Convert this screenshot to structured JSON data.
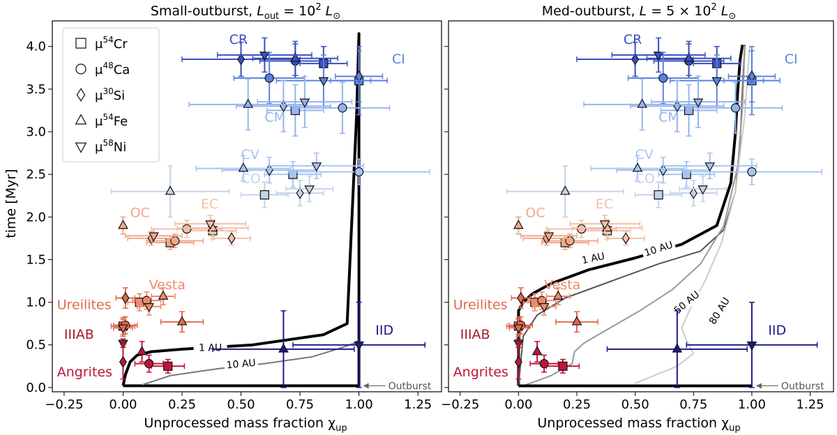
{
  "figure": {
    "ylabel": "time [Myr]",
    "outburst_note": "Outburst"
  },
  "legend": {
    "entries": [
      {
        "marker": "square",
        "label_main": "μ",
        "label_sup": "54",
        "label_tail": "Cr"
      },
      {
        "marker": "circle",
        "label_main": "μ",
        "label_sup": "48",
        "label_tail": "Ca"
      },
      {
        "marker": "diamond",
        "label_main": "μ",
        "label_sup": "30",
        "label_tail": "Si"
      },
      {
        "marker": "triangle-up",
        "label_main": "μ",
        "label_sup": "54",
        "label_tail": "Fe"
      },
      {
        "marker": "triangle-down",
        "label_main": "μ",
        "label_sup": "58",
        "label_tail": "Ni"
      }
    ]
  },
  "colors": {
    "CR": "#3a4fc0",
    "CI": "#5c82e0",
    "CM": "#95b4ec",
    "CV": "#a6c4f2",
    "CO": "#c5d3e8",
    "OC": "#f0a88a",
    "EC": "#f2c0a8",
    "Vesta": "#ee8a6c",
    "Ureilites": "#e0694f",
    "IIIAB": "#a01c24",
    "Angrites": "#c01638",
    "IID": "#1a1a88"
  },
  "panels": [
    {
      "title_main": "Small-outburst, ",
      "title_math": "L",
      "title_sub": "out",
      "title_eq": " = 10",
      "title_sup": "2",
      "title_tail": " L",
      "title_sun": "⊙",
      "xlabel": "Unprocessed mass fraction χ",
      "xlabel_sub": "up",
      "curve_labels": [
        "1 AU",
        "10 AU"
      ]
    },
    {
      "title_main": "Med-outburst, ",
      "title_math": "L",
      "title_sub": "",
      "title_eq": " = 5 × 10",
      "title_sup": "2",
      "title_tail": " L",
      "title_sun": "⊙",
      "xlabel": "Unprocessed mass fraction χ",
      "xlabel_sub": "up",
      "curve_labels": [
        "1 AU",
        "10 AU",
        "50 AU",
        "80 AU"
      ]
    }
  ],
  "chart_data": {
    "type": "scatter",
    "xlim": [
      -0.3,
      1.35
    ],
    "ylim": [
      -0.05,
      4.3
    ],
    "xticks": [
      "−0.25",
      "0.00",
      "0.25",
      "0.50",
      "0.75",
      "1.00",
      "1.25"
    ],
    "xtick_values": [
      -0.25,
      0,
      0.25,
      0.5,
      0.75,
      1.0,
      1.25
    ],
    "yticks": [
      "0.0",
      "0.5",
      "1.0",
      "1.5",
      "2.0",
      "2.5",
      "3.0",
      "3.5",
      "4.0"
    ],
    "ytick_values": [
      0,
      0.5,
      1.0,
      1.5,
      2.0,
      2.5,
      3.0,
      3.5,
      4.0
    ],
    "group_labels": [
      {
        "name": "CR",
        "x": 0.45,
        "y": 4.03
      },
      {
        "name": "CI",
        "x": 1.14,
        "y": 3.8
      },
      {
        "name": "CM",
        "x": 0.6,
        "y": 3.12
      },
      {
        "name": "CV",
        "x": 0.5,
        "y": 2.68
      },
      {
        "name": "CO",
        "x": 0.5,
        "y": 2.4
      },
      {
        "name": "OC",
        "x": 0.03,
        "y": 2.0
      },
      {
        "name": "EC",
        "x": 0.33,
        "y": 2.1
      },
      {
        "name": "Vesta",
        "x": 0.11,
        "y": 1.15
      },
      {
        "name": "Ureilites",
        "x": -0.28,
        "y": 0.92
      },
      {
        "name": "IIIAB",
        "x": -0.25,
        "y": 0.57
      },
      {
        "name": "Angrites",
        "x": -0.28,
        "y": 0.13
      },
      {
        "name": "IID",
        "x": 1.07,
        "y": 0.62
      }
    ],
    "points": [
      {
        "group": "CR",
        "marker": "square",
        "x": 0.85,
        "y": 3.8,
        "xerr": 0.1,
        "yerr": 0.2
      },
      {
        "group": "CR",
        "marker": "circle",
        "x": 0.73,
        "y": 3.83,
        "xerr": 0.15,
        "yerr": 0.2
      },
      {
        "group": "CR",
        "marker": "diamond",
        "x": 0.5,
        "y": 3.85,
        "xerr": 0.25,
        "yerr": 0.2
      },
      {
        "group": "CR",
        "marker": "triangle-up",
        "x": 0.73,
        "y": 3.86,
        "xerr": 0.18,
        "yerr": 0.2
      },
      {
        "group": "CR",
        "marker": "triangle-down",
        "x": 0.6,
        "y": 3.9,
        "xerr": 0.2,
        "yerr": 0.2
      },
      {
        "group": "CI",
        "marker": "square",
        "x": 1.0,
        "y": 3.6,
        "xerr": 0.12,
        "yerr": 0.4
      },
      {
        "group": "CI",
        "marker": "circle",
        "x": 0.62,
        "y": 3.63,
        "xerr": 0.15,
        "yerr": 0.3
      },
      {
        "group": "CI",
        "marker": "diamond",
        "x": 1.0,
        "y": 3.65,
        "xerr": 0.1,
        "yerr": 0.3
      },
      {
        "group": "CI",
        "marker": "triangle-down",
        "x": 0.85,
        "y": 3.6,
        "xerr": 0.2,
        "yerr": 0.3
      },
      {
        "group": "CM",
        "marker": "square",
        "x": 0.73,
        "y": 3.25,
        "xerr": 0.12,
        "yerr": 0.3
      },
      {
        "group": "CM",
        "marker": "circle",
        "x": 0.93,
        "y": 3.28,
        "xerr": 0.2,
        "yerr": 0.3
      },
      {
        "group": "CM",
        "marker": "diamond",
        "x": 0.68,
        "y": 3.3,
        "xerr": 0.2,
        "yerr": 0.3
      },
      {
        "group": "CM",
        "marker": "triangle-up",
        "x": 0.53,
        "y": 3.32,
        "xerr": 0.25,
        "yerr": 0.3
      },
      {
        "group": "CM",
        "marker": "triangle-down",
        "x": 0.77,
        "y": 3.35,
        "xerr": 0.2,
        "yerr": 0.3
      },
      {
        "group": "CV",
        "marker": "square",
        "x": 0.72,
        "y": 2.5,
        "xerr": 0.12,
        "yerr": 0.15
      },
      {
        "group": "CV",
        "marker": "circle",
        "x": 1.0,
        "y": 2.53,
        "xerr": 0.3,
        "yerr": 0.15
      },
      {
        "group": "CV",
        "marker": "diamond",
        "x": 0.62,
        "y": 2.55,
        "xerr": 0.2,
        "yerr": 0.15
      },
      {
        "group": "CV",
        "marker": "triangle-up",
        "x": 0.51,
        "y": 2.57,
        "xerr": 0.2,
        "yerr": 0.15
      },
      {
        "group": "CV",
        "marker": "triangle-down",
        "x": 0.82,
        "y": 2.6,
        "xerr": 0.2,
        "yerr": 0.15
      },
      {
        "group": "CO",
        "marker": "square",
        "x": 0.6,
        "y": 2.26,
        "xerr": 0.1,
        "yerr": 0.15
      },
      {
        "group": "CO",
        "marker": "triangle-up",
        "x": 0.2,
        "y": 2.3,
        "xerr": 0.25,
        "yerr": 0.3
      },
      {
        "group": "CO",
        "marker": "diamond",
        "x": 0.75,
        "y": 2.28,
        "xerr": 0.1,
        "yerr": 0.15
      },
      {
        "group": "CO",
        "marker": "triangle-down",
        "x": 0.79,
        "y": 2.33,
        "xerr": 0.1,
        "yerr": 0.15
      },
      {
        "group": "OC",
        "marker": "square",
        "x": 0.2,
        "y": 1.7,
        "xerr": 0.1,
        "yerr": 0.08
      },
      {
        "group": "OC",
        "marker": "circle",
        "x": 0.22,
        "y": 1.72,
        "xerr": 0.12,
        "yerr": 0.08
      },
      {
        "group": "OC",
        "marker": "diamond",
        "x": 0.12,
        "y": 1.75,
        "xerr": 0.1,
        "yerr": 0.08
      },
      {
        "group": "OC",
        "marker": "triangle-up",
        "x": 0.0,
        "y": 1.9,
        "xerr": 0.0,
        "yerr": 0.1
      },
      {
        "group": "OC",
        "marker": "triangle-down",
        "x": 0.13,
        "y": 1.78,
        "xerr": 0.12,
        "yerr": 0.08
      },
      {
        "group": "EC",
        "marker": "square",
        "x": 0.38,
        "y": 1.84,
        "xerr": 0.1,
        "yerr": 0.1
      },
      {
        "group": "EC",
        "marker": "circle",
        "x": 0.27,
        "y": 1.86,
        "xerr": 0.15,
        "yerr": 0.1
      },
      {
        "group": "EC",
        "marker": "diamond",
        "x": 0.46,
        "y": 1.75,
        "xerr": 0.08,
        "yerr": 0.08
      },
      {
        "group": "EC",
        "marker": "triangle-up",
        "x": 0.38,
        "y": 1.87,
        "xerr": 0.15,
        "yerr": 0.1
      },
      {
        "group": "EC",
        "marker": "triangle-down",
        "x": 0.37,
        "y": 1.92,
        "xerr": 0.15,
        "yerr": 0.1
      },
      {
        "group": "Vesta",
        "marker": "square",
        "x": 0.07,
        "y": 1.0,
        "xerr": 0.05,
        "yerr": 0.1
      },
      {
        "group": "Vesta",
        "marker": "circle",
        "x": 0.1,
        "y": 1.02,
        "xerr": 0.06,
        "yerr": 0.1
      },
      {
        "group": "Vesta",
        "marker": "triangle-up",
        "x": 0.17,
        "y": 1.07,
        "xerr": 0.05,
        "yerr": 0.1
      },
      {
        "group": "Vesta",
        "marker": "triangle-down",
        "x": 0.11,
        "y": 0.95,
        "xerr": 0.05,
        "yerr": 0.1
      },
      {
        "group": "Ureilites",
        "marker": "diamond",
        "x": 0.01,
        "y": 1.05,
        "xerr": 0.04,
        "yerr": 0.12
      },
      {
        "group": "Ureilites",
        "marker": "square",
        "x": 0.0,
        "y": 0.72,
        "xerr": 0.05,
        "yerr": 0.1
      },
      {
        "group": "Ureilites",
        "marker": "circle",
        "x": 0.01,
        "y": 0.73,
        "xerr": 0.05,
        "yerr": 0.1
      },
      {
        "group": "Ureilites",
        "marker": "triangle-up",
        "x": 0.25,
        "y": 0.77,
        "xerr": 0.09,
        "yerr": 0.12
      },
      {
        "group": "Ureilites",
        "marker": "triangle-down",
        "x": 0.0,
        "y": 0.7,
        "xerr": 0.04,
        "yerr": 0.1
      },
      {
        "group": "IIIAB",
        "marker": "triangle-down",
        "x": 0.0,
        "y": 0.52,
        "xerr": 0.0,
        "yerr": 0.05
      },
      {
        "group": "Angrites",
        "marker": "square",
        "x": 0.19,
        "y": 0.25,
        "xerr": 0.07,
        "yerr": 0.08
      },
      {
        "group": "Angrites",
        "marker": "circle",
        "x": 0.11,
        "y": 0.28,
        "xerr": 0.06,
        "yerr": 0.1
      },
      {
        "group": "Angrites",
        "marker": "diamond",
        "x": 0.0,
        "y": 0.3,
        "xerr": 0.0,
        "yerr": 0.2
      },
      {
        "group": "Angrites",
        "marker": "triangle-up",
        "x": 0.08,
        "y": 0.42,
        "xerr": 0.0,
        "yerr": 0.12
      },
      {
        "group": "IID",
        "marker": "triangle-up",
        "x": 0.68,
        "y": 0.45,
        "xerr": 0.3,
        "yerr": 0.45
      },
      {
        "group": "IID",
        "marker": "triangle-down",
        "x": 1.0,
        "y": 0.5,
        "xerr": 0.28,
        "yerr": 0.5
      }
    ],
    "panel_curves": [
      {
        "panel": "Small-outburst",
        "curves": [
          {
            "label": "1 AU",
            "color": "#000000",
            "x": [
              0.0,
              0.0,
              1.0,
              1.0,
              0.99,
              0.95,
              0.85,
              0.55,
              0.25,
              0.12,
              0.06,
              0.03,
              0.01,
              0.0
            ],
            "y": [
              0.02,
              0.02,
              0.02,
              4.15,
              3.2,
              0.75,
              0.62,
              0.5,
              0.45,
              0.42,
              0.38,
              0.3,
              0.15,
              0.02
            ]
          },
          {
            "label": "10 AU",
            "color": "#777777",
            "x": [
              0.08,
              0.2,
              0.4,
              0.6,
              0.8,
              0.92,
              0.98,
              1.0
            ],
            "y": [
              0.03,
              0.14,
              0.22,
              0.28,
              0.36,
              0.46,
              0.52,
              0.56
            ]
          }
        ]
      },
      {
        "panel": "Med-outburst",
        "curves": [
          {
            "label": "1 AU",
            "color": "#000000",
            "x": [
              0.0,
              0.0,
              0.02,
              0.06,
              0.14,
              0.3,
              0.5,
              0.7,
              0.85,
              0.91,
              0.93,
              0.94,
              0.95,
              0.96
            ],
            "y": [
              0.02,
              0.9,
              1.0,
              1.1,
              1.22,
              1.38,
              1.52,
              1.68,
              1.9,
              2.4,
              3.0,
              3.5,
              3.85,
              4.02
            ]
          },
          {
            "label": "10 AU",
            "color": "#555555",
            "x": [
              0.0,
              0.02,
              0.08,
              0.2,
              0.4,
              0.6,
              0.78,
              0.88,
              0.93,
              0.95,
              0.96,
              0.97
            ],
            "y": [
              0.02,
              0.6,
              0.85,
              1.05,
              1.25,
              1.45,
              1.6,
              1.85,
              2.3,
              2.9,
              3.5,
              4.02
            ]
          },
          {
            "label": "50 AU",
            "color": "#999999",
            "x": [
              0.02,
              0.14,
              0.23,
              0.24,
              0.28,
              0.38,
              0.52,
              0.66,
              0.78,
              0.88,
              0.94,
              0.96,
              0.97
            ],
            "y": [
              0.02,
              0.14,
              0.28,
              0.42,
              0.52,
              0.68,
              0.9,
              1.15,
              1.45,
              1.9,
              2.6,
              3.3,
              4.0
            ]
          },
          {
            "label": "80 AU",
            "color": "#cccccc",
            "x": [
              0.5,
              0.68,
              0.75,
              0.72,
              0.7,
              0.74,
              0.8,
              0.87,
              0.93,
              0.97,
              0.99
            ],
            "y": [
              0.05,
              0.25,
              0.4,
              0.55,
              0.7,
              0.95,
              1.25,
              1.7,
              2.3,
              3.2,
              4.0
            ]
          }
        ]
      }
    ]
  }
}
